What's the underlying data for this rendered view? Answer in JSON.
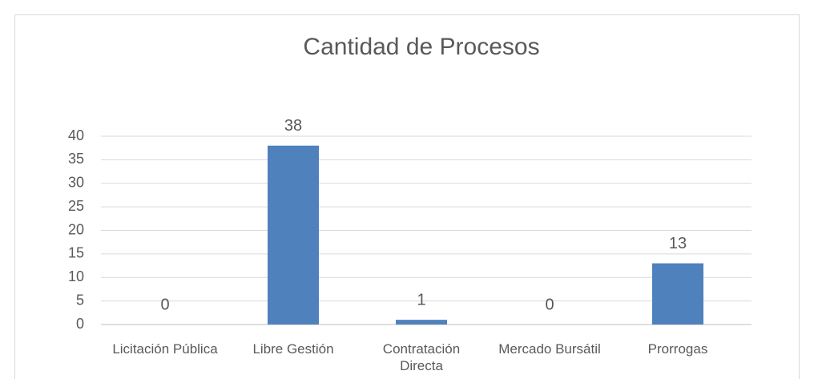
{
  "chart_data": {
    "type": "bar",
    "title": "Cantidad de Procesos",
    "categories": [
      "Licitación Pública",
      "Libre Gestión",
      "Contratación Directa",
      "Mercado Bursátil",
      "Prorrogas"
    ],
    "values": [
      0,
      38,
      1,
      0,
      13
    ],
    "color": "#4f81bd",
    "ylim": [
      0,
      40
    ],
    "yticks": [
      0,
      5,
      10,
      15,
      20,
      25,
      30,
      35,
      40
    ],
    "grid": true
  }
}
